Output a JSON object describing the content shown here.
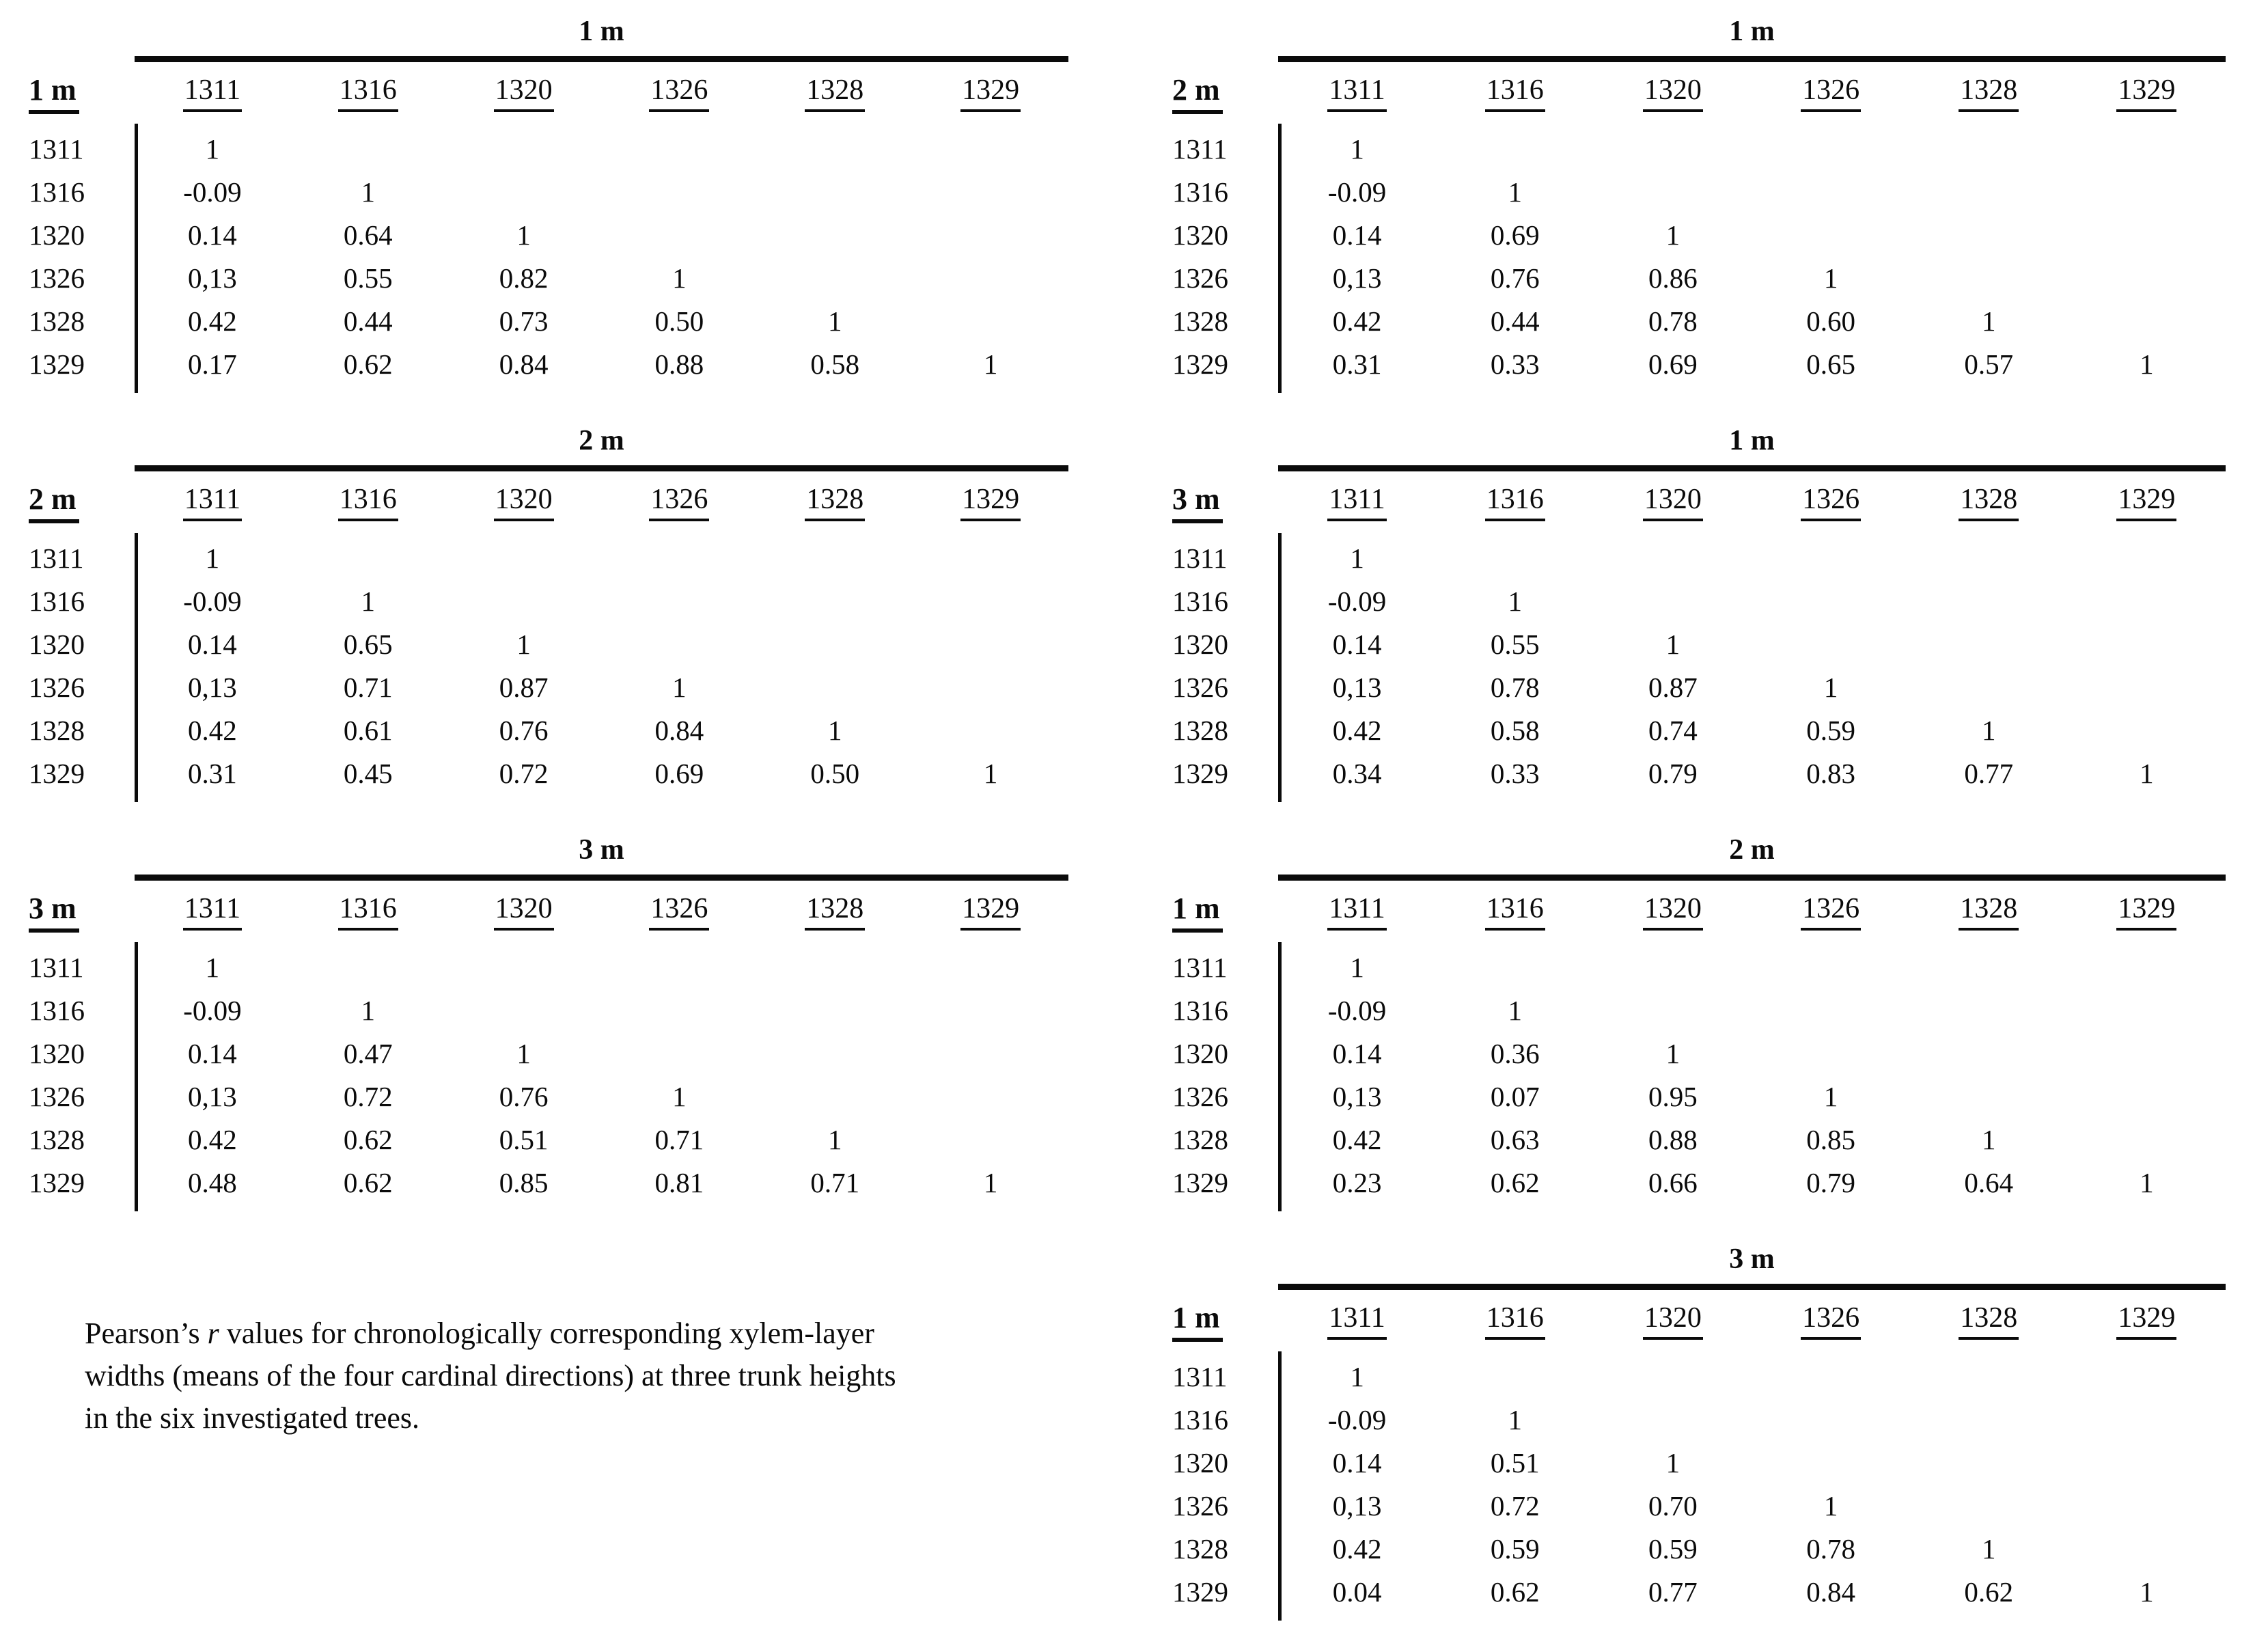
{
  "columns": [
    "1311",
    "1316",
    "1320",
    "1326",
    "1328",
    "1329"
  ],
  "tables": [
    {
      "title": "1 m",
      "row_label": "1 m",
      "rows": [
        {
          "label": "1311",
          "values": [
            "1"
          ]
        },
        {
          "label": "1316",
          "values": [
            "-0.09",
            "1"
          ]
        },
        {
          "label": "1320",
          "values": [
            "0.14",
            "0.64",
            "1"
          ]
        },
        {
          "label": "1326",
          "values": [
            "0,13",
            "0.55",
            "0.82",
            "1"
          ]
        },
        {
          "label": "1328",
          "values": [
            "0.42",
            "0.44",
            "0.73",
            "0.50",
            "1"
          ]
        },
        {
          "label": "1329",
          "values": [
            "0.17",
            "0.62",
            "0.84",
            "0.88",
            "0.58",
            "1"
          ]
        }
      ]
    },
    {
      "title": "2 m",
      "row_label": "2 m",
      "rows": [
        {
          "label": "1311",
          "values": [
            "1"
          ]
        },
        {
          "label": "1316",
          "values": [
            "-0.09",
            "1"
          ]
        },
        {
          "label": "1320",
          "values": [
            "0.14",
            "0.65",
            "1"
          ]
        },
        {
          "label": "1326",
          "values": [
            "0,13",
            "0.71",
            "0.87",
            "1"
          ]
        },
        {
          "label": "1328",
          "values": [
            "0.42",
            "0.61",
            "0.76",
            "0.84",
            "1"
          ]
        },
        {
          "label": "1329",
          "values": [
            "0.31",
            "0.45",
            "0.72",
            "0.69",
            "0.50",
            "1"
          ]
        }
      ]
    },
    {
      "title": "3 m",
      "row_label": "3 m",
      "rows": [
        {
          "label": "1311",
          "values": [
            "1"
          ]
        },
        {
          "label": "1316",
          "values": [
            "-0.09",
            "1"
          ]
        },
        {
          "label": "1320",
          "values": [
            "0.14",
            "0.47",
            "1"
          ]
        },
        {
          "label": "1326",
          "values": [
            "0,13",
            "0.72",
            "0.76",
            "1"
          ]
        },
        {
          "label": "1328",
          "values": [
            "0.42",
            "0.62",
            "0.51",
            "0.71",
            "1"
          ]
        },
        {
          "label": "1329",
          "values": [
            "0.48",
            "0.62",
            "0.85",
            "0.81",
            "0.71",
            "1"
          ]
        }
      ]
    },
    {
      "title": "1 m",
      "row_label": "2 m",
      "rows": [
        {
          "label": "1311",
          "values": [
            "1"
          ]
        },
        {
          "label": "1316",
          "values": [
            "-0.09",
            "1"
          ]
        },
        {
          "label": "1320",
          "values": [
            "0.14",
            "0.69",
            "1"
          ]
        },
        {
          "label": "1326",
          "values": [
            "0,13",
            "0.76",
            "0.86",
            "1"
          ]
        },
        {
          "label": "1328",
          "values": [
            "0.42",
            "0.44",
            "0.78",
            "0.60",
            "1"
          ]
        },
        {
          "label": "1329",
          "values": [
            "0.31",
            "0.33",
            "0.69",
            "0.65",
            "0.57",
            "1"
          ]
        }
      ]
    },
    {
      "title": "1 m",
      "row_label": "3 m",
      "rows": [
        {
          "label": "1311",
          "values": [
            "1"
          ]
        },
        {
          "label": "1316",
          "values": [
            "-0.09",
            "1"
          ]
        },
        {
          "label": "1320",
          "values": [
            "0.14",
            "0.55",
            "1"
          ]
        },
        {
          "label": "1326",
          "values": [
            "0,13",
            "0.78",
            "0.87",
            "1"
          ]
        },
        {
          "label": "1328",
          "values": [
            "0.42",
            "0.58",
            "0.74",
            "0.59",
            "1"
          ]
        },
        {
          "label": "1329",
          "values": [
            "0.34",
            "0.33",
            "0.79",
            "0.83",
            "0.77",
            "1"
          ]
        }
      ]
    },
    {
      "title": "2 m",
      "row_label": "1 m",
      "rows": [
        {
          "label": "1311",
          "values": [
            "1"
          ]
        },
        {
          "label": "1316",
          "values": [
            "-0.09",
            "1"
          ]
        },
        {
          "label": "1320",
          "values": [
            "0.14",
            "0.36",
            "1"
          ]
        },
        {
          "label": "1326",
          "values": [
            "0,13",
            "0.07",
            "0.95",
            "1"
          ]
        },
        {
          "label": "1328",
          "values": [
            "0.42",
            "0.63",
            "0.88",
            "0.85",
            "1"
          ]
        },
        {
          "label": "1329",
          "values": [
            "0.23",
            "0.62",
            "0.66",
            "0.79",
            "0.64",
            "1"
          ]
        }
      ]
    },
    {
      "title": "3 m",
      "row_label": "1 m",
      "rows": [
        {
          "label": "1311",
          "values": [
            "1"
          ]
        },
        {
          "label": "1316",
          "values": [
            "-0.09",
            "1"
          ]
        },
        {
          "label": "1320",
          "values": [
            "0.14",
            "0.51",
            "1"
          ]
        },
        {
          "label": "1326",
          "values": [
            "0,13",
            "0.72",
            "0.70",
            "1"
          ]
        },
        {
          "label": "1328",
          "values": [
            "0.42",
            "0.59",
            "0.59",
            "0.78",
            "1"
          ]
        },
        {
          "label": "1329",
          "values": [
            "0.04",
            "0.62",
            "0.77",
            "0.84",
            "0.62",
            "1"
          ]
        }
      ]
    }
  ],
  "caption": {
    "line1_prefix": "Pearson’s ",
    "line1_italic": "r",
    "line1_rest": " values for chronologically corresponding xylem-layer",
    "line2": "widths (means of the four cardinal directions) at three trunk heights",
    "line3": "in the six investigated trees."
  }
}
